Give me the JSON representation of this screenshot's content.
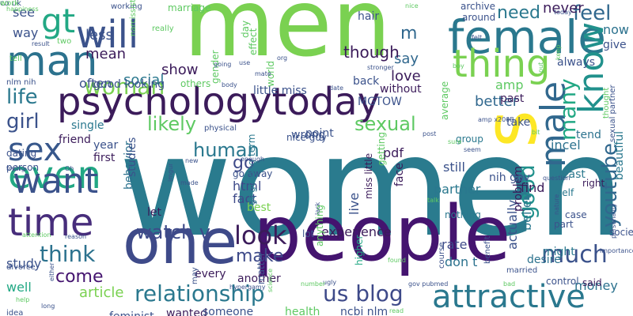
{
  "words": [
    {
      "t": "women",
      "c": "#2a7b8e"
    },
    {
      "t": "men",
      "c": "#7ad151"
    },
    {
      "t": "people",
      "c": "#44146f"
    },
    {
      "t": "psychologytoday",
      "c": "#3b1b5a"
    },
    {
      "t": "one",
      "c": "#3e4a89"
    },
    {
      "t": "s",
      "c": "#fde725"
    },
    {
      "t": "female",
      "c": "#2a788e"
    },
    {
      "t": "man",
      "c": "#2c728e"
    },
    {
      "t": "time",
      "c": "#472d7b"
    },
    {
      "t": "even",
      "c": "#22a884"
    },
    {
      "t": "want",
      "c": "#3b528b"
    },
    {
      "t": "sex",
      "c": "#38588c"
    },
    {
      "t": "attractive",
      "c": "#2a788e"
    },
    {
      "t": "male",
      "c": "#31688e"
    },
    {
      "t": "know",
      "c": "#21918c"
    },
    {
      "t": "will",
      "c": "#3b528b"
    },
    {
      "t": "thing",
      "c": "#7ad151"
    },
    {
      "t": "gt",
      "c": "#22a884"
    },
    {
      "t": "relationship",
      "c": "#2a788e"
    },
    {
      "t": "look",
      "c": "#3b1b5a"
    },
    {
      "t": "us blog",
      "c": "#3e4a89"
    },
    {
      "t": "much",
      "c": "#3b528b"
    },
    {
      "t": "youtube",
      "c": "#31688e"
    },
    {
      "t": "good",
      "c": "#21918c"
    },
    {
      "t": "many",
      "c": "#22a884"
    },
    {
      "t": "life",
      "c": "#2a788e"
    },
    {
      "t": "girl",
      "c": "#3b528b"
    },
    {
      "t": "think",
      "c": "#2c728e"
    },
    {
      "t": "watch v",
      "c": "#3e4a89"
    },
    {
      "t": "woman",
      "c": "#7ad151"
    },
    {
      "t": "feel",
      "c": "#31688e"
    },
    {
      "t": "need",
      "c": "#2a788e"
    },
    {
      "t": "human",
      "c": "#2a788e"
    },
    {
      "t": "sexual",
      "c": "#5ec962"
    },
    {
      "t": "likely",
      "c": "#5ec962"
    },
    {
      "t": "make",
      "c": "#3e4a89"
    },
    {
      "t": "come",
      "c": "#44146f"
    },
    {
      "t": "experience",
      "c": "#3b1b5a"
    },
    {
      "t": "money",
      "c": "#2c728e"
    },
    {
      "t": "article",
      "c": "#7ad151"
    },
    {
      "t": "study",
      "c": "#3b528b"
    },
    {
      "t": "well",
      "c": "#22a884"
    },
    {
      "t": "go",
      "c": "#3e4a89"
    },
    {
      "t": "love",
      "c": "#3b1b5a"
    },
    {
      "t": "say",
      "c": "#31688e"
    },
    {
      "t": "better",
      "c": "#31688e"
    },
    {
      "t": "social",
      "c": "#2a788e"
    },
    {
      "t": "show",
      "c": "#3b1b5a"
    },
    {
      "t": "often",
      "c": "#3b528b"
    },
    {
      "t": "single",
      "c": "#2a788e"
    },
    {
      "t": "way",
      "c": "#3b528b"
    },
    {
      "t": "less",
      "c": "#3b528b"
    },
    {
      "t": "see",
      "c": "#3b528b"
    },
    {
      "t": "mean",
      "c": "#3b1b5a"
    },
    {
      "t": "now",
      "c": "#2c728e"
    },
    {
      "t": "give",
      "c": "#3b528b"
    },
    {
      "t": "never",
      "c": "#3b1b5a"
    },
    {
      "t": "m",
      "c": "#31688e"
    },
    {
      "t": "though",
      "c": "#3b1b5a"
    },
    {
      "t": "amp",
      "c": "#5ec962"
    },
    {
      "t": "incel",
      "c": "#2c728e"
    },
    {
      "t": "still",
      "c": "#3b528b"
    },
    {
      "t": "partner",
      "c": "#2a788e"
    },
    {
      "t": "html",
      "c": "#3e4a89"
    },
    {
      "t": "fact",
      "c": "#3e4a89"
    },
    {
      "t": "believe",
      "c": "#2a788e"
    },
    {
      "t": "actually",
      "c": "#3b528b"
    },
    {
      "t": "find",
      "c": "#3b1b5a"
    },
    {
      "t": "problem",
      "c": "#3b1b5a"
    },
    {
      "t": "least",
      "c": "#2a788e"
    },
    {
      "t": "live",
      "c": "#3b528b"
    },
    {
      "t": "rate",
      "c": "#3e4a89"
    },
    {
      "t": "don t",
      "c": "#2c728e"
    },
    {
      "t": "nih gov",
      "c": "#3b528b"
    },
    {
      "t": "point",
      "c": "#3b528b"
    },
    {
      "t": "MGTOW",
      "c": "#3b528b"
    },
    {
      "t": "first",
      "c": "#3b1b5a"
    },
    {
      "t": "year",
      "c": "#3b528b"
    },
    {
      "t": "pdf",
      "c": "#3b1b5a"
    },
    {
      "t": "friend",
      "c": "#3b1b5a"
    },
    {
      "t": "wrong",
      "c": "#3b528b"
    },
    {
      "t": "behavior",
      "c": "#2c728e"
    },
    {
      "t": "every",
      "c": "#3b1b5a"
    },
    {
      "t": "another",
      "c": "#3b1b5a"
    },
    {
      "t": "feminist",
      "c": "#3b528b"
    },
    {
      "t": "wanted",
      "c": "#3b1b5a"
    },
    {
      "t": "someone",
      "c": "#3b528b"
    },
    {
      "t": "matter",
      "c": "#3b528b"
    },
    {
      "t": "health",
      "c": "#5ec962"
    },
    {
      "t": "ncbi nlm",
      "c": "#3b528b"
    },
    {
      "t": "desire",
      "c": "#2c728e"
    },
    {
      "t": "might",
      "c": "#2a788e"
    },
    {
      "t": "always",
      "c": "#3b528b"
    },
    {
      "t": "take",
      "c": "#3b528b"
    },
    {
      "t": "past",
      "c": "#3b1b5a"
    },
    {
      "t": "hair",
      "c": "#3b528b"
    },
    {
      "t": "back",
      "c": "#3b528b"
    },
    {
      "t": "without",
      "c": "#3b1b5a"
    },
    {
      "t": "tend",
      "c": "#2c728e"
    },
    {
      "t": "beautiful",
      "c": "#2a788e"
    },
    {
      "t": "dating",
      "c": "#3b528b"
    },
    {
      "t": "person",
      "c": "#3b528b"
    },
    {
      "t": "studies",
      "c": "#3b528b"
    },
    {
      "t": "good looking",
      "c": "#3b528b"
    },
    {
      "t": "little miss",
      "c": "#3b528b"
    },
    {
      "t": "nice guy",
      "c": "#3b528b"
    },
    {
      "t": "go away",
      "c": "#3b528b"
    },
    {
      "t": "gt gt long term",
      "c": "#2a788e"
    },
    {
      "t": "miss little",
      "c": "#3b1b5a"
    },
    {
      "t": "nothing",
      "c": "#2a788e"
    },
    {
      "t": "face",
      "c": "#3b1b5a"
    },
    {
      "t": "group",
      "c": "#2a788e"
    },
    {
      "t": "self",
      "c": "#2a788e"
    },
    {
      "t": "part",
      "c": "#3b528b"
    },
    {
      "t": "case",
      "c": "#3b528b"
    },
    {
      "t": "right",
      "c": "#3b1b5a"
    },
    {
      "t": "said",
      "c": "#3b1b5a"
    },
    {
      "t": "society",
      "c": "#3b528b"
    },
    {
      "t": "control",
      "c": "#3b528b"
    },
    {
      "t": "lot",
      "c": "#3b528b"
    },
    {
      "t": "best",
      "c": "#7ad151"
    },
    {
      "t": "let",
      "c": "#3b1b5a"
    },
    {
      "t": "anything",
      "c": "#5ec962"
    },
    {
      "t": "higher",
      "c": "#22a884"
    },
    {
      "t": "getting",
      "c": "#5ec962"
    },
    {
      "t": "average",
      "c": "#5ec962"
    },
    {
      "t": "around",
      "c": "#3b528b"
    },
    {
      "t": "archive",
      "c": "#3b528b"
    },
    {
      "t": "marriage",
      "c": "#5ec962"
    },
    {
      "t": "world",
      "c": "#5ec962"
    },
    {
      "t": "effect",
      "c": "#5ec962"
    },
    {
      "t": "day",
      "c": "#5ec962"
    },
    {
      "t": "gender",
      "c": "#5ec962"
    },
    {
      "t": "others",
      "c": "#5ec962"
    },
    {
      "t": "nlm nih",
      "c": "#3b528b"
    },
    {
      "t": "two",
      "c": "#5ec962"
    },
    {
      "t": "tell",
      "c": "#5ec962"
    },
    {
      "t": "result",
      "c": "#3b528b"
    },
    {
      "t": "happiness",
      "c": "#5ec962"
    },
    {
      "t": "working",
      "c": "#3b528b"
    },
    {
      "t": "narcissist",
      "c": "#5ec962"
    },
    {
      "t": "really",
      "c": "#5ec962"
    },
    {
      "t": "going",
      "c": "#3b528b"
    },
    {
      "t": "use",
      "c": "#3b528b"
    },
    {
      "t": "mate",
      "c": "#3b528b"
    },
    {
      "t": "org",
      "c": "#3b528b"
    },
    {
      "t": "stronger",
      "c": "#3b528b"
    },
    {
      "t": "date",
      "c": "#3b528b"
    },
    {
      "t": "body",
      "c": "#3b528b"
    },
    {
      "t": "nice",
      "c": "#5ec962"
    },
    {
      "t": "today",
      "c": "#3b528b"
    },
    {
      "t": "felt",
      "c": "#3b528b"
    },
    {
      "t": "boy",
      "c": "#5ec962"
    },
    {
      "t": "put",
      "c": "#5ec962"
    },
    {
      "t": "keep",
      "c": "#5ec962"
    },
    {
      "t": "amp x200B",
      "c": "#3b528b"
    },
    {
      "t": "thought",
      "c": "#5ec962"
    },
    {
      "t": "sexual partner",
      "c": "#3b528b"
    },
    {
      "t": "personality",
      "c": "#3b528b"
    },
    {
      "t": "importance",
      "c": "#3b528b"
    },
    {
      "t": "question",
      "c": "#3b528b"
    },
    {
      "t": "post",
      "c": "#3b528b"
    },
    {
      "t": "sure",
      "c": "#5ec962"
    },
    {
      "t": "seem",
      "c": "#3b528b"
    },
    {
      "t": "bit",
      "c": "#5ec962"
    },
    {
      "t": "nature",
      "c": "#3b528b"
    },
    {
      "t": "married",
      "c": "#3b528b"
    },
    {
      "t": "bad",
      "c": "#5ec962"
    },
    {
      "t": "benefit",
      "c": "#3b528b"
    },
    {
      "t": "course",
      "c": "#3b528b"
    },
    {
      "t": "gov pubmed",
      "c": "#3b528b"
    },
    {
      "t": "read",
      "c": "#5ec962"
    },
    {
      "t": "talk",
      "c": "#5ec962"
    },
    {
      "t": "found",
      "c": "#5ec962"
    },
    {
      "t": "ugly",
      "c": "#3b528b"
    },
    {
      "t": "lack",
      "c": "#3b528b"
    },
    {
      "t": "number",
      "c": "#5ec962"
    },
    {
      "t": "science",
      "c": "#5ec962"
    },
    {
      "t": "may",
      "c": "#3b528b"
    },
    {
      "t": "hypergamy",
      "c": "#3b528b"
    },
    {
      "t": "new",
      "c": "#3b528b"
    },
    {
      "t": "imgur",
      "c": "#3b528b"
    },
    {
      "t": "enough",
      "c": "#3b528b"
    },
    {
      "t": "made",
      "c": "#3b528b"
    },
    {
      "t": "trying",
      "c": "#3b528b"
    },
    {
      "t": "Oh",
      "c": "#3b528b"
    },
    {
      "t": "attention",
      "c": "#5ec962"
    },
    {
      "t": "reason",
      "c": "#3b528b"
    },
    {
      "t": "divorce",
      "c": "#3b528b"
    },
    {
      "t": "either",
      "c": "#3b528b"
    },
    {
      "t": "help",
      "c": "#5ec962"
    },
    {
      "t": "long",
      "c": "#3b528b"
    },
    {
      "t": "idea",
      "c": "#3b528b"
    },
    {
      "t": "physical",
      "c": "#3b528b"
    },
    {
      "t": "co uk",
      "c": "#3b528b"
    },
    {
      "t": "work",
      "c": "#5ec962"
    }
  ]
}
